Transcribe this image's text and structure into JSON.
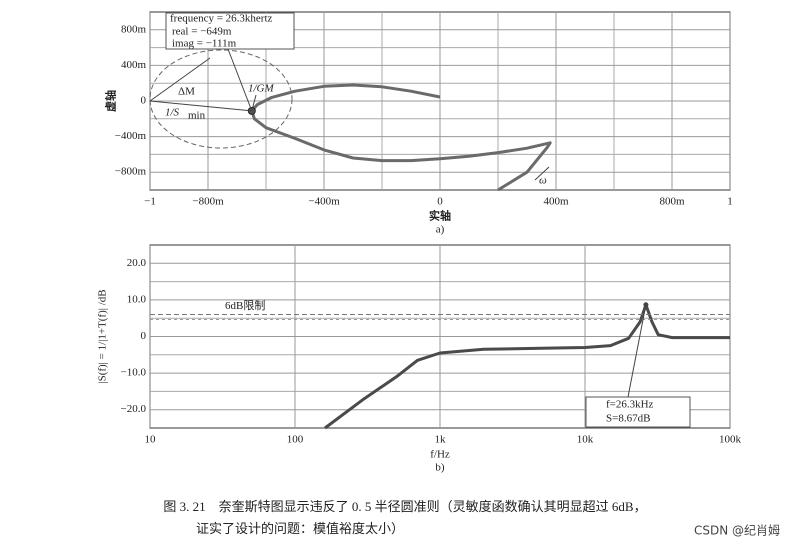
{
  "chart_data": [
    {
      "type": "line",
      "subtitle": "a)",
      "xlabel": "实轴",
      "ylabel": "虚轴",
      "xlim": [
        -1,
        1
      ],
      "xticks": [
        {
          "value": -1,
          "label": "−1"
        },
        {
          "value": -0.8,
          "label": "−800m"
        },
        {
          "value": -0.4,
          "label": "−400m"
        },
        0,
        {
          "value": 0.4,
          "label": "400m"
        },
        {
          "value": 0.8,
          "label": "800m"
        },
        1
      ],
      "xgrid_minor": [
        -0.6,
        -0.2,
        0.2,
        0.6
      ],
      "ylim": [
        -1,
        1
      ],
      "yticks": [
        {
          "value": 0.8,
          "label": "800m"
        },
        {
          "value": 0.4,
          "label": "400m"
        },
        0,
        {
          "value": -0.4,
          "label": "−400m"
        },
        {
          "value": -0.8,
          "label": "−800m"
        }
      ],
      "ygrid_minor": [
        0.6,
        0.2,
        -0.2,
        -0.6
      ],
      "grid": true,
      "color": "#6a6a6a",
      "x": [
        0,
        -0.1,
        -0.2,
        -0.3,
        -0.4,
        -0.5,
        -0.58,
        -0.63,
        -0.649,
        -0.64,
        -0.6,
        -0.5,
        -0.4,
        -0.3,
        -0.2,
        -0.1,
        0,
        0.1,
        0.2,
        0.3,
        0.38,
        0.37,
        0.3,
        0.2
      ],
      "values": [
        0.045,
        0.11,
        0.16,
        0.18,
        0.165,
        0.11,
        0.04,
        -0.04,
        -0.111,
        -0.2,
        -0.3,
        -0.42,
        -0.55,
        -0.64,
        -0.67,
        -0.67,
        -0.65,
        -0.62,
        -0.58,
        -0.53,
        -0.47,
        -0.52,
        -0.8,
        -1.0
      ],
      "marker": {
        "x": -0.649,
        "y": -0.111
      },
      "annotations": [
        "frequency = 26.3khertz",
        "real = −649m",
        "imag = −111m",
        "ΔM",
        "1/GM",
        "1/S",
        "min",
        "ω"
      ]
    },
    {
      "type": "line",
      "subtitle": "b)",
      "xlabel": "f/Hz",
      "ylabel": "|S(f)| = 1/|1+T(f)| /dB",
      "xlog": true,
      "xlim": [
        10,
        100000
      ],
      "xticks": [
        10,
        100,
        {
          "value": 1000,
          "label": "1k"
        },
        {
          "value": 10000,
          "label": "10k"
        },
        {
          "value": 100000,
          "label": "100k"
        }
      ],
      "xgrid_minor": [],
      "ylim": [
        -25,
        25
      ],
      "yticks": [
        {
          "value": 20,
          "label": "20.0"
        },
        {
          "value": 10,
          "label": "10.0"
        },
        0,
        {
          "value": -10,
          "label": "−10.0"
        },
        {
          "value": -20,
          "label": "−20.0"
        }
      ],
      "ygrid_minor": [
        15,
        5,
        -5,
        -15
      ],
      "grid": true,
      "color": "#4a4a4a",
      "x": [
        161,
        300,
        500,
        700,
        1000,
        2000,
        5000,
        10000,
        15000,
        20000,
        24000,
        26300,
        29000,
        32000,
        40000,
        100000
      ],
      "values": [
        -25,
        -17,
        -11,
        -6.5,
        -4.5,
        -3.5,
        -3.2,
        -3,
        -2.5,
        -0.5,
        4,
        8.67,
        4,
        0.5,
        -0.3,
        -0.3
      ],
      "limit": 6,
      "limit_label": "6dB限制",
      "marker": {
        "x": 26300,
        "y": 8.67
      },
      "annotations": [
        "f=26.3kHz",
        "S=8.67dB"
      ]
    }
  ],
  "caption": [
    "图 3. 21　奈奎斯特图显示违反了 0. 5 半径圆准则（灵敏度函数确认其明显超过 6dB，",
    "证实了设计的问题：模值裕度太小）"
  ],
  "watermark": "CSDN @纪肖姆"
}
